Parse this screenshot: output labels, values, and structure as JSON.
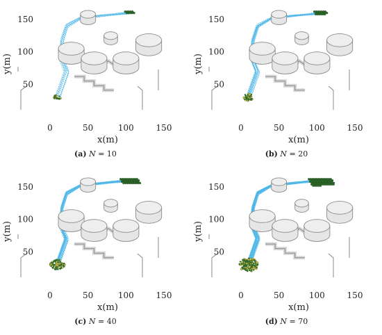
{
  "colors": {
    "trajectory": "#4fb7e8",
    "agent_fill": "#2e6b2a",
    "agent_edge": "#1f3f1c",
    "start_fill": "#d9c24a",
    "obstacle_fill": "#e6e6e6",
    "obstacle_edge": "#8a8a8a"
  },
  "axes": {
    "xlabel": "x(m)",
    "ylabel": "y(m)",
    "xticks": [
      "0",
      "50",
      "100",
      "150"
    ],
    "yticks": [
      "50",
      "100",
      "150"
    ]
  },
  "panels": [
    {
      "letter": "(a)",
      "var": "N",
      "eq": " = 10"
    },
    {
      "letter": "(b)",
      "var": "N",
      "eq": " = 20"
    },
    {
      "letter": "(c)",
      "var": "N",
      "eq": " = 40"
    },
    {
      "letter": "(d)",
      "var": "N",
      "eq": " = 70"
    }
  ],
  "chart_data": [
    {
      "type": "scatter",
      "agents": 10,
      "start_center": [
        10,
        30
      ],
      "goal_center": [
        105,
        160
      ],
      "xlim": [
        0,
        150
      ],
      "ylim": [
        0,
        165
      ]
    },
    {
      "type": "scatter",
      "agents": 20,
      "start_center": [
        10,
        30
      ],
      "goal_center": [
        105,
        160
      ],
      "xlim": [
        0,
        150
      ],
      "ylim": [
        0,
        165
      ]
    },
    {
      "type": "scatter",
      "agents": 40,
      "start_center": [
        10,
        30
      ],
      "goal_center": [
        105,
        160
      ],
      "xlim": [
        0,
        150
      ],
      "ylim": [
        0,
        165
      ]
    },
    {
      "type": "scatter",
      "agents": 70,
      "start_center": [
        10,
        30
      ],
      "goal_center": [
        105,
        160
      ],
      "xlim": [
        0,
        150
      ],
      "ylim": [
        0,
        165
      ]
    }
  ]
}
